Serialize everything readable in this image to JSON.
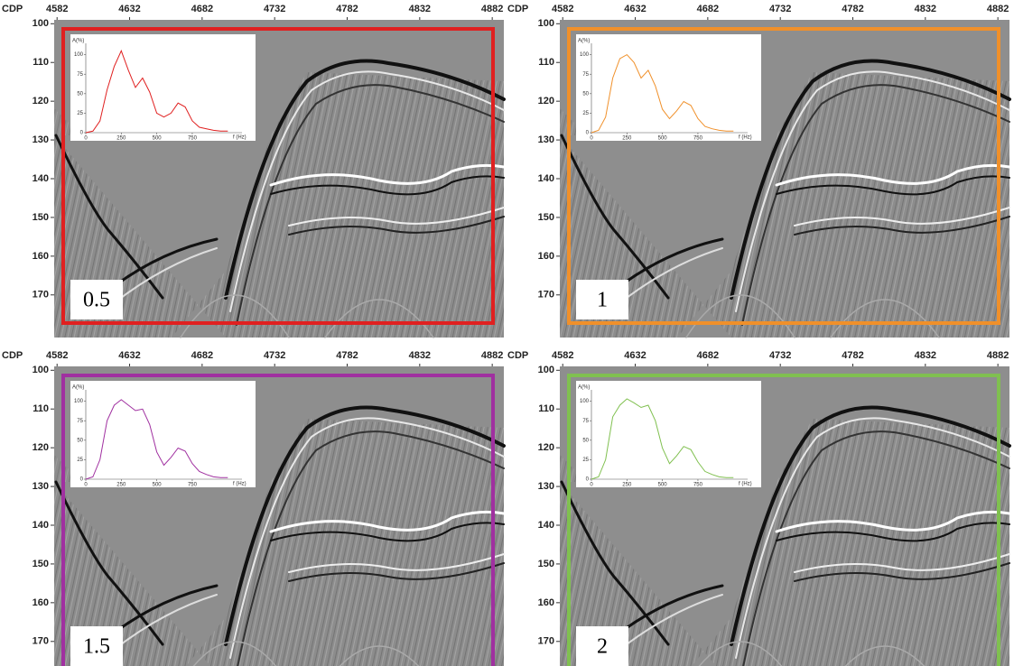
{
  "chart_data": [
    {
      "type": "seismic",
      "x_label": "CDP",
      "xlim": [
        4580,
        4890
      ],
      "xticks": [
        4582,
        4632,
        4682,
        4732,
        4782,
        4832,
        4882
      ],
      "ylim": [
        99,
        181
      ],
      "yticks": [
        100,
        110,
        120,
        130,
        140,
        150,
        160,
        170
      ],
      "panel_label": 0.5,
      "color": "#e02020",
      "inset": {
        "type": "line",
        "y_label": "A(%)",
        "x_label": "f (Hz)",
        "xlim": [
          0,
          1100
        ],
        "ylim": [
          0,
          110
        ],
        "xticks": [
          0,
          250,
          500,
          750
        ],
        "yticks": [
          0,
          25,
          50,
          75,
          100
        ],
        "x": [
          0,
          50,
          100,
          150,
          200,
          250,
          300,
          350,
          400,
          450,
          500,
          550,
          600,
          650,
          700,
          750,
          800,
          850,
          900,
          950,
          1000
        ],
        "values": [
          0,
          2,
          15,
          55,
          85,
          105,
          80,
          58,
          70,
          52,
          25,
          20,
          25,
          38,
          33,
          15,
          7,
          5,
          3,
          2,
          2
        ]
      }
    },
    {
      "type": "seismic",
      "x_label": "CDP",
      "xlim": [
        4580,
        4890
      ],
      "xticks": [
        4582,
        4632,
        4682,
        4732,
        4782,
        4832,
        4882
      ],
      "ylim": [
        99,
        181
      ],
      "yticks": [
        100,
        110,
        120,
        130,
        140,
        150,
        160,
        170
      ],
      "panel_label": 1,
      "color": "#f0902a",
      "inset": {
        "type": "line",
        "y_label": "A(%)",
        "x_label": "f (Hz)",
        "xlim": [
          0,
          1100
        ],
        "ylim": [
          0,
          110
        ],
        "xticks": [
          0,
          250,
          500,
          750
        ],
        "yticks": [
          0,
          25,
          50,
          75,
          100
        ],
        "x": [
          0,
          50,
          100,
          150,
          200,
          250,
          300,
          350,
          400,
          450,
          500,
          550,
          600,
          650,
          700,
          750,
          800,
          850,
          900,
          950,
          1000
        ],
        "values": [
          0,
          3,
          20,
          70,
          95,
          100,
          90,
          70,
          80,
          60,
          30,
          18,
          28,
          40,
          35,
          18,
          8,
          5,
          3,
          2,
          2
        ]
      }
    },
    {
      "type": "seismic",
      "x_label": "CDP",
      "xlim": [
        4580,
        4890
      ],
      "xticks": [
        4582,
        4632,
        4682,
        4732,
        4782,
        4832,
        4882
      ],
      "ylim": [
        99,
        181
      ],
      "yticks": [
        100,
        110,
        120,
        130,
        140,
        150,
        160,
        170
      ],
      "panel_label": 1.5,
      "color": "#a030a0",
      "inset": {
        "type": "line",
        "y_label": "A(%)",
        "x_label": "f (Hz)",
        "xlim": [
          0,
          1100
        ],
        "ylim": [
          0,
          110
        ],
        "xticks": [
          0,
          250,
          500,
          750
        ],
        "yticks": [
          0,
          25,
          50,
          75,
          100
        ],
        "x": [
          0,
          50,
          100,
          150,
          200,
          250,
          300,
          350,
          400,
          450,
          500,
          550,
          600,
          650,
          700,
          750,
          800,
          850,
          900,
          950,
          1000
        ],
        "values": [
          0,
          3,
          25,
          75,
          95,
          102,
          95,
          88,
          90,
          70,
          35,
          18,
          28,
          40,
          36,
          20,
          10,
          6,
          3,
          2,
          2
        ]
      }
    },
    {
      "type": "seismic",
      "x_label": "CDP",
      "xlim": [
        4580,
        4890
      ],
      "xticks": [
        4582,
        4632,
        4682,
        4732,
        4782,
        4832,
        4882
      ],
      "ylim": [
        99,
        181
      ],
      "yticks": [
        100,
        110,
        120,
        130,
        140,
        150,
        160,
        170
      ],
      "panel_label": 2,
      "color": "#80c050",
      "inset": {
        "type": "line",
        "y_label": "A(%)",
        "x_label": "f (Hz)",
        "xlim": [
          0,
          1100
        ],
        "ylim": [
          0,
          110
        ],
        "xticks": [
          0,
          250,
          500,
          750
        ],
        "yticks": [
          0,
          25,
          50,
          75,
          100
        ],
        "x": [
          0,
          50,
          100,
          150,
          200,
          250,
          300,
          350,
          400,
          450,
          500,
          550,
          600,
          650,
          700,
          750,
          800,
          850,
          900,
          950,
          1000
        ],
        "values": [
          0,
          3,
          25,
          80,
          95,
          103,
          98,
          92,
          95,
          75,
          40,
          20,
          30,
          42,
          38,
          22,
          10,
          6,
          3,
          2,
          2
        ]
      }
    }
  ]
}
